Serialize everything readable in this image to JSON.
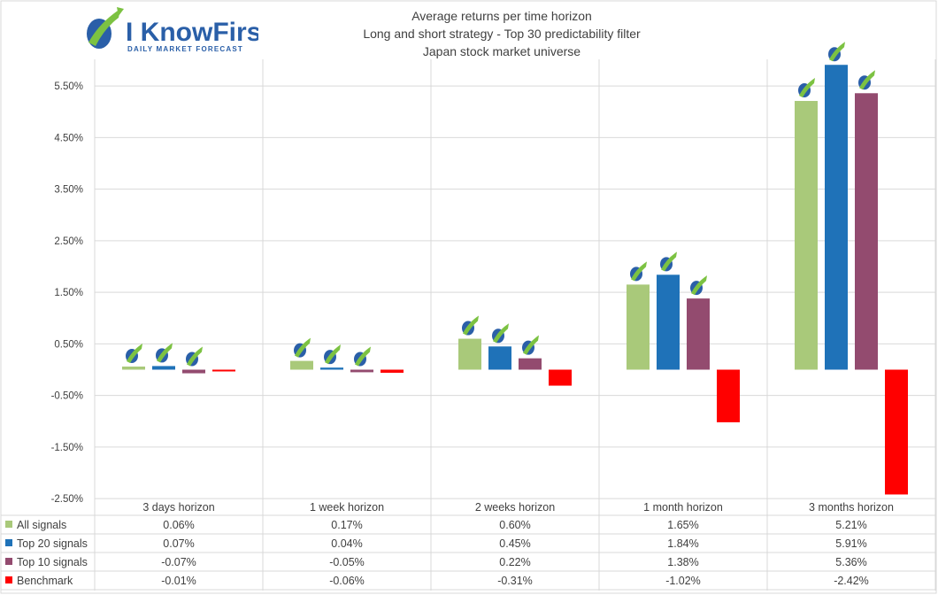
{
  "logo": {
    "brand": "I KnowFirst",
    "tagline": "Daily Market Forecast"
  },
  "colors": {
    "all_signals": "#a9c97a",
    "top20": "#1f72b8",
    "top10": "#934b6f",
    "benchmark": "#ff0000",
    "grid": "#d9d9d9",
    "text": "#404040"
  },
  "chart_data": {
    "type": "bar",
    "title": [
      "Average returns per time horizon",
      "Long and short strategy - Top 30 predictability filter",
      "Japan stock market universe"
    ],
    "categories": [
      "3 days horizon",
      "1 week horizon",
      "2 weeks horizon",
      "1 month horizon",
      "3 months horizon"
    ],
    "y_ticks": [
      "5.50%",
      "4.50%",
      "3.50%",
      "2.50%",
      "1.50%",
      "0.50%",
      "-0.50%",
      "-1.50%",
      "-2.50%"
    ],
    "ylim": [
      -2.5,
      5.9
    ],
    "series": [
      {
        "name": "All signals",
        "color_key": "all_signals",
        "values": [
          0.06,
          0.17,
          0.6,
          1.65,
          5.21
        ],
        "labels": [
          "0.06%",
          "0.17%",
          "0.60%",
          "1.65%",
          "5.21%"
        ]
      },
      {
        "name": "Top 20 signals",
        "color_key": "top20",
        "values": [
          0.07,
          0.04,
          0.45,
          1.84,
          5.91
        ],
        "labels": [
          "0.07%",
          "0.04%",
          "0.45%",
          "1.84%",
          "5.91%"
        ]
      },
      {
        "name": "Top 10 signals",
        "color_key": "top10",
        "values": [
          -0.07,
          -0.05,
          0.22,
          1.38,
          5.36
        ],
        "labels": [
          "-0.07%",
          "-0.05%",
          "0.22%",
          "1.38%",
          "5.36%"
        ]
      },
      {
        "name": "Benchmark",
        "color_key": "benchmark",
        "values": [
          -0.01,
          -0.06,
          -0.31,
          -1.02,
          -2.42
        ],
        "labels": [
          "-0.01%",
          "-0.06%",
          "-0.31%",
          "-1.02%",
          "-2.42%"
        ]
      }
    ],
    "legend": "data-table-bottom",
    "grid": true
  }
}
